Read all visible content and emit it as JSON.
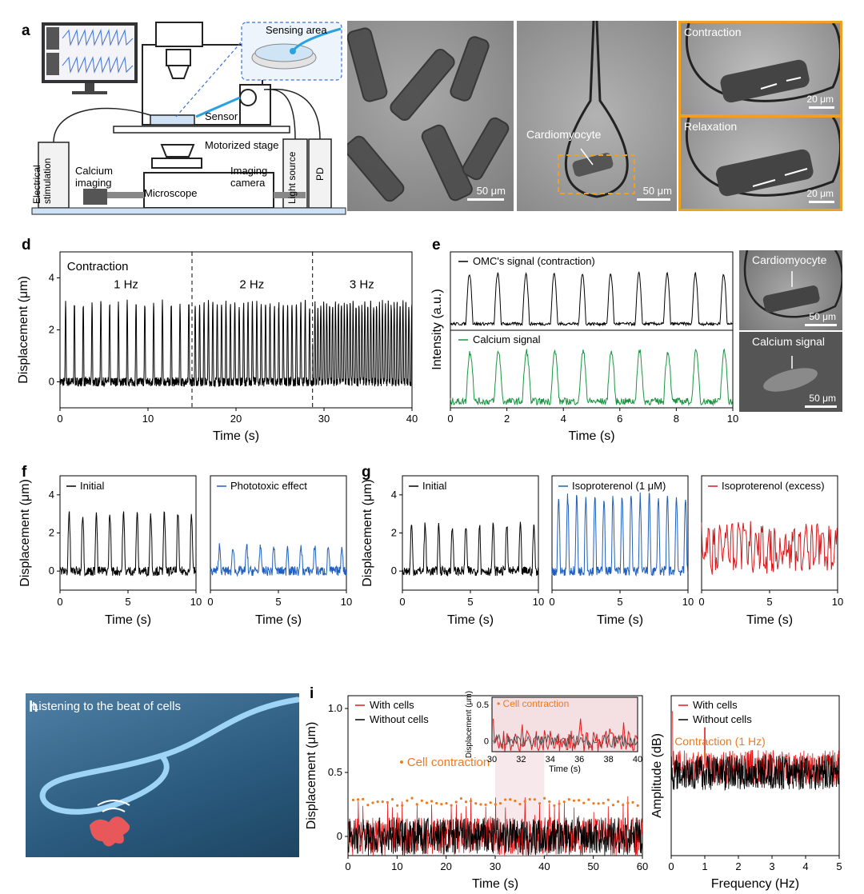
{
  "panels": {
    "a": {
      "letter": "a",
      "labels": {
        "sensing_area": "Sensing area",
        "sensor": "Sensor",
        "motorized_stage": "Motorized stage",
        "electrical_stimulation": "Electrical stimulation",
        "calcium_imaging": "Calcium imaging",
        "microscope": "Microscope",
        "imaging_camera": "Imaging camera",
        "light_source": "Light source",
        "pd": "PD"
      }
    },
    "b": {
      "letter": "b",
      "scale": "50 μm"
    },
    "c": {
      "letter": "c",
      "cardiomyocyte": "Cardiomyocyte",
      "scale": "50 μm",
      "contraction": "Contraction",
      "relaxation": "Relaxation",
      "scale_zoom": "20 μm"
    },
    "d": {
      "letter": "d"
    },
    "e": {
      "letter": "e",
      "img_cardiomyocyte": "Cardiomyocyte",
      "img_calcium": "Calcium signal",
      "scale": "50 μm"
    },
    "f": {
      "letter": "f"
    },
    "g": {
      "letter": "g"
    },
    "h": {
      "letter": "h",
      "title": "Listening to the beat of cells"
    },
    "i": {
      "letter": "i"
    }
  },
  "chart_data": [
    {
      "id": "d",
      "type": "line",
      "xlabel": "Time (s)",
      "ylabel": "Displacement (μm)",
      "xlim": [
        0,
        40
      ],
      "ylim": [
        -1,
        5
      ],
      "xticks": [
        0,
        10,
        20,
        30,
        40
      ],
      "yticks": [
        0,
        2,
        4
      ],
      "annotations": [
        "Contraction",
        "1 Hz",
        "2 Hz",
        "3 Hz"
      ],
      "dividers_x": [
        15,
        28.7
      ],
      "segments": [
        {
          "t0": 0,
          "t1": 15,
          "rate_hz": 1
        },
        {
          "t0": 15,
          "t1": 28.7,
          "rate_hz": 2
        },
        {
          "t0": 28.7,
          "t1": 40,
          "rate_hz": 3
        }
      ],
      "peak_value": 3.0,
      "color": "#000000"
    },
    {
      "id": "e",
      "type": "line",
      "xlabel": "Time (s)",
      "ylabel": "Intensity (a.u.)",
      "xlim": [
        0,
        10
      ],
      "xticks": [
        0,
        2,
        4,
        6,
        8,
        10
      ],
      "series": [
        {
          "name": "OMC's signal (contraction)",
          "color": "#000000",
          "rate_hz": 1
        },
        {
          "name": "Calcium signal",
          "color": "#1a9641",
          "rate_hz": 1
        }
      ]
    },
    {
      "id": "f",
      "type": "line",
      "ylabel": "Displacement (μm)",
      "ylim": [
        -1,
        5
      ],
      "yticks": [
        0,
        2,
        4
      ],
      "subplots": [
        {
          "name": "Initial",
          "color": "#000000",
          "xlabel": "Time (s)",
          "xlim": [
            0,
            10
          ],
          "xticks": [
            0,
            5,
            10
          ],
          "peak": 3.0,
          "rate_hz": 1
        },
        {
          "name": "Phototoxic effect",
          "color": "#1f5fbf",
          "xlabel": "Time (s)",
          "xlim": [
            0,
            10
          ],
          "xticks": [
            0,
            5,
            10
          ],
          "peak": 1.3,
          "rate_hz": 1
        }
      ]
    },
    {
      "id": "g",
      "type": "line",
      "ylabel": "Displacement (μm)",
      "ylim": [
        -1,
        5
      ],
      "yticks": [
        0,
        2,
        4
      ],
      "subplots": [
        {
          "name": "Initial",
          "color": "#000000",
          "xlabel": "Time (s)",
          "xlim": [
            0,
            10
          ],
          "xticks": [
            0,
            5,
            10
          ],
          "peak": 2.4,
          "rate_hz": 1
        },
        {
          "name": "Isoproterenol (1 μM)",
          "color": "#1f5fbf",
          "xlabel": "Time (s)",
          "xlim": [
            0,
            10
          ],
          "xticks": [
            0,
            5,
            10
          ],
          "peak": 3.9,
          "rate_hz": 1.5
        },
        {
          "name": "Isoproterenol (excess)",
          "color": "#d7191c",
          "xlabel": "Time (s)",
          "xlim": [
            0,
            10
          ],
          "xticks": [
            0,
            5,
            10
          ],
          "peak": 2.5,
          "rate_hz": 0
        }
      ]
    },
    {
      "id": "i-time",
      "type": "line",
      "xlabel": "Time (s)",
      "ylabel": "Displacement (μm)",
      "xlim": [
        0,
        60
      ],
      "ylim": [
        -0.15,
        1.1
      ],
      "xticks": [
        0,
        10,
        20,
        30,
        40,
        50,
        60
      ],
      "yticks": [
        0,
        0.5,
        1.0
      ],
      "ytick_labels": [
        "0",
        "0.5",
        "1.0"
      ],
      "annotation": "Cell contraction",
      "series": [
        {
          "name": "With cells",
          "color": "#e41a1c"
        },
        {
          "name": "Without cells",
          "color": "#000000"
        }
      ],
      "inset": {
        "xlabel": "Time (s)",
        "ylabel": "Displacement (μm)",
        "xlim": [
          30,
          40
        ],
        "ylim": [
          -0.15,
          0.6
        ],
        "xticks": [
          30,
          32,
          34,
          36,
          38,
          40
        ],
        "yticks": [
          0,
          0.5
        ],
        "annotation": "Cell contraction"
      }
    },
    {
      "id": "i-freq",
      "type": "line",
      "xlabel": "Frequency (Hz)",
      "ylabel": "Amplitude (dB)",
      "xlim": [
        0,
        5
      ],
      "xticks": [
        0,
        1,
        2,
        3,
        4,
        5
      ],
      "annotation": "Contraction (1 Hz)",
      "series": [
        {
          "name": "With cells",
          "color": "#e41a1c"
        },
        {
          "name": "Without cells",
          "color": "#000000"
        }
      ]
    }
  ]
}
